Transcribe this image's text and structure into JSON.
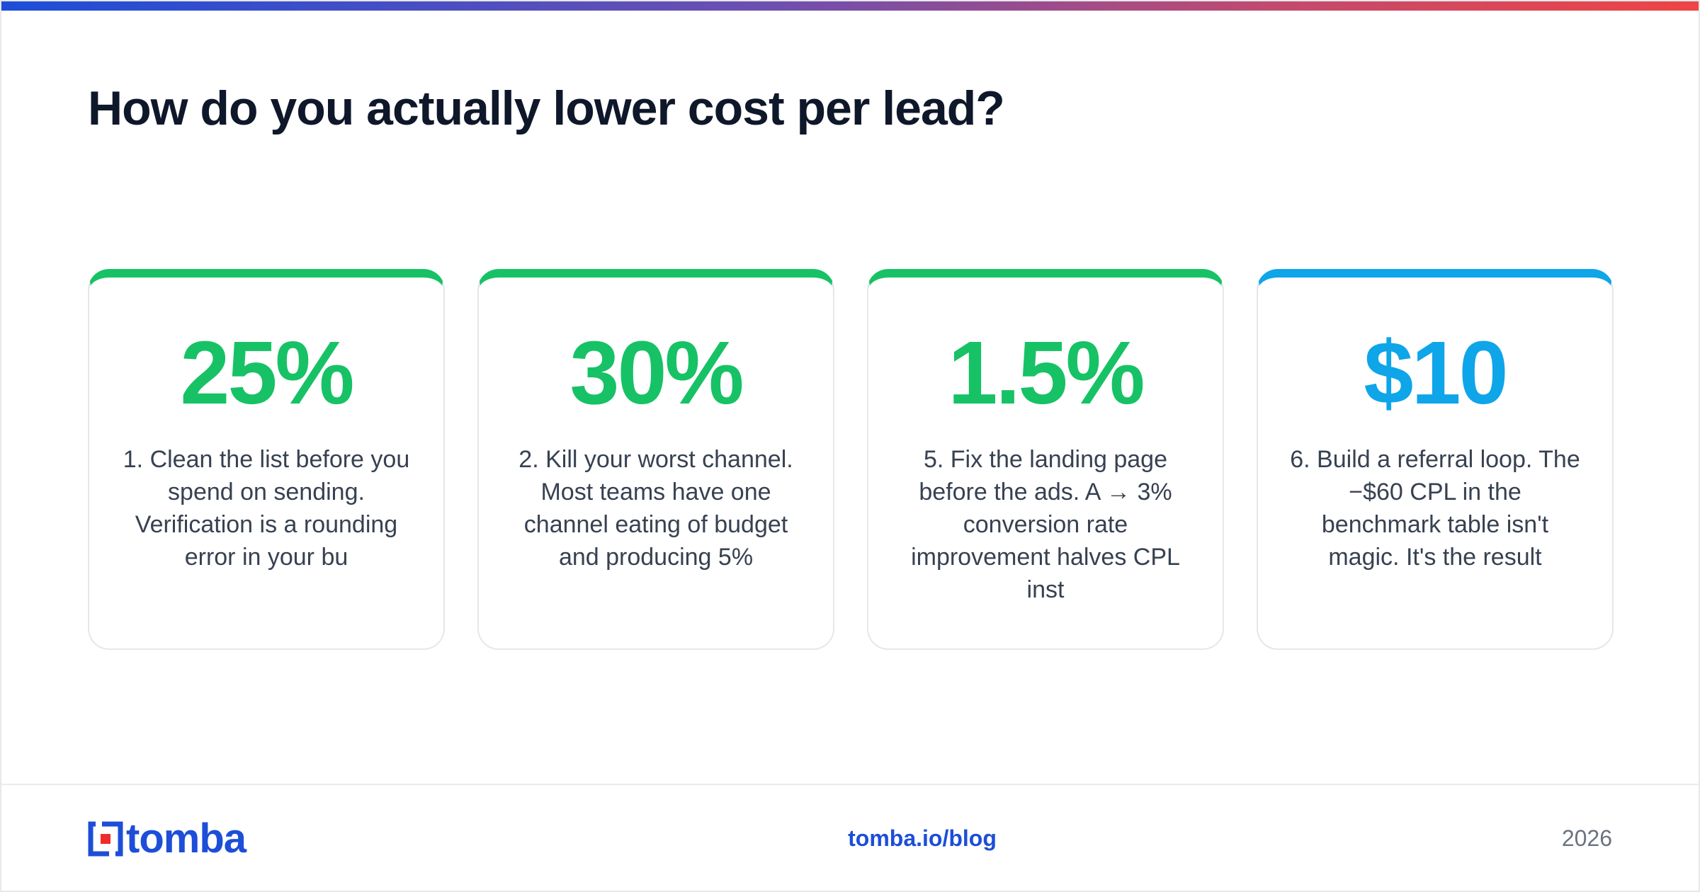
{
  "header": {
    "title": "How do you actually lower cost per lead?"
  },
  "cards": [
    {
      "value": "25%",
      "text": "1. Clean the list before you spend on sending. Verification is a rounding error in your bu",
      "accent": "#16c265"
    },
    {
      "value": "30%",
      "text": "2. Kill your worst channel. Most teams have one channel eating of budget and producing 5%",
      "accent": "#16c265"
    },
    {
      "value": "1.5%",
      "text": "5. Fix the landing page before the ads. A → 3% conversion rate improvement halves CPL inst",
      "accent": "#16c265"
    },
    {
      "value": "$10",
      "text": "6. Build a referral loop. The −$60 CPL in the benchmark table isn't magic. It's the result",
      "accent": "#0ea5e9"
    }
  ],
  "footer": {
    "brand": "tomba",
    "link": "tomba.io/blog",
    "year": "2026"
  },
  "colors": {
    "brand_blue": "#1d4ed8",
    "green": "#16c265",
    "sky": "#0ea5e9",
    "logo_red": "#ef2b2b"
  }
}
